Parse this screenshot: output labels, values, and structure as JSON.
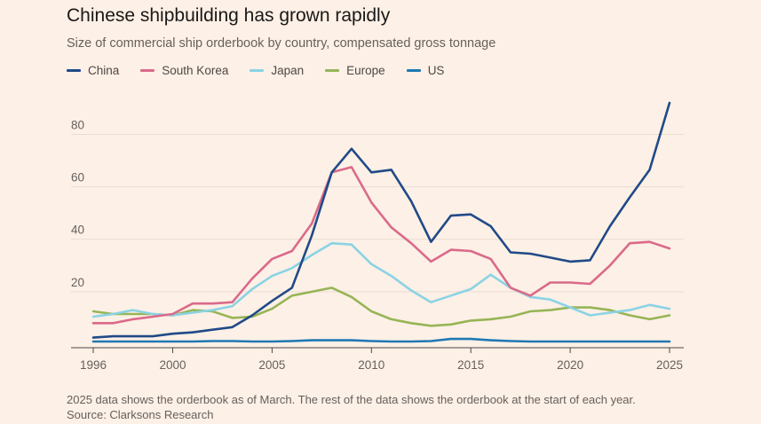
{
  "title": "Chinese shipbuilding has grown rapidly",
  "subtitle": "Size of commercial ship orderbook by country, compensated gross tonnage",
  "footnote": "2025 data shows the orderbook as of March. The rest of the data shows the orderbook at the start of each year.",
  "source": "Source: Clarksons Research",
  "chart_data": {
    "type": "line",
    "x": [
      1996,
      1997,
      1998,
      1999,
      2000,
      2001,
      2002,
      2003,
      2004,
      2005,
      2006,
      2007,
      2008,
      2009,
      2010,
      2011,
      2012,
      2013,
      2014,
      2015,
      2016,
      2017,
      2018,
      2019,
      2020,
      2021,
      2022,
      2023,
      2024,
      2025
    ],
    "ylim": [
      0,
      92
    ],
    "xlim": [
      1996,
      2025
    ],
    "yticks": [
      20,
      40,
      60,
      80
    ],
    "xticks": [
      1996,
      2000,
      2005,
      2010,
      2015,
      2020,
      2025
    ],
    "xtick_labels": [
      "1996",
      "2000",
      "2005",
      "2010",
      "2015",
      "2020",
      "2025"
    ],
    "ytick_labels": [
      "20",
      "40",
      "60",
      "80"
    ],
    "grid": true,
    "legend_position": "top-left",
    "series": [
      {
        "name": "US",
        "color": "#1f78b4",
        "values": [
          1,
          1,
          1,
          1,
          1,
          1,
          1.2,
          1.2,
          1,
          1,
          1.2,
          1.5,
          1.5,
          1.5,
          1.2,
          1,
          1,
          1.2,
          2,
          2,
          1.5,
          1.2,
          1,
          1,
          1,
          1,
          1,
          1,
          1,
          1
        ]
      },
      {
        "name": "Europe",
        "color": "#96b556",
        "values": [
          12.5,
          11.5,
          11.5,
          11.5,
          11,
          13,
          12.5,
          10,
          10.5,
          13.5,
          18.5,
          20,
          21.5,
          18,
          12.5,
          9.5,
          8,
          7,
          7.5,
          9,
          9.5,
          10.5,
          12.5,
          13,
          14,
          14,
          13,
          11,
          9.5,
          11
        ]
      },
      {
        "name": "Japan",
        "color": "#8ad3e5",
        "values": [
          10.5,
          11.5,
          13,
          11.5,
          11,
          12,
          13,
          14.5,
          21,
          26,
          29,
          34,
          38.5,
          38,
          30.5,
          26,
          20.5,
          16,
          18.5,
          21,
          26.5,
          21.5,
          18,
          17,
          14,
          11,
          12,
          13,
          15,
          13.5
        ]
      },
      {
        "name": "South Korea",
        "color": "#da6a8a",
        "values": [
          8,
          8,
          9.5,
          10.5,
          11.5,
          15.5,
          15.5,
          16,
          25,
          32.5,
          35.5,
          46,
          65.5,
          67.5,
          54,
          44.5,
          38.5,
          31.5,
          36,
          35.5,
          32.5,
          21.5,
          18.5,
          23.5,
          23.5,
          23,
          30,
          38.5,
          39,
          36.5
        ]
      },
      {
        "name": "China",
        "color": "#204a87",
        "values": [
          2.5,
          3,
          3,
          3,
          4,
          4.5,
          5.5,
          6.5,
          11,
          16.5,
          21.5,
          41.5,
          65.5,
          74.5,
          65.5,
          66.5,
          54.5,
          39,
          49,
          49.5,
          45,
          35,
          34.5,
          33,
          31.5,
          32,
          45,
          56,
          66.5,
          92
        ]
      }
    ]
  }
}
